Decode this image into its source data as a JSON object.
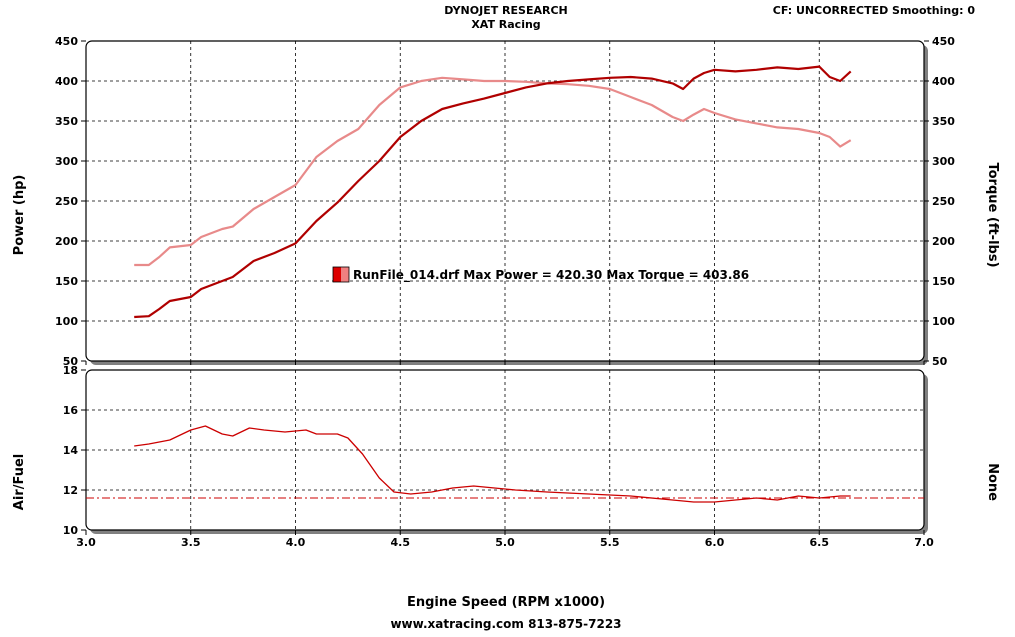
{
  "header": {
    "title": "DYNOJET RESEARCH",
    "subtitle": "XAT Racing",
    "right_info": "CF: UNCORRECTED  Smoothing: 0"
  },
  "footer": {
    "contact": "www.xatracing.com   813-875-7223"
  },
  "legend": {
    "text": "RunFile_014.drf Max Power = 420.30     Max Torque = 403.86",
    "swatch_colors": [
      "#dd0000",
      "#f08080"
    ]
  },
  "colors": {
    "power": "#b00000",
    "torque": "#e88a8a",
    "afr": "#cc0000",
    "reference": "#cc0000"
  },
  "chart_data": [
    {
      "type": "line",
      "name": "power-torque",
      "xlim": [
        3.0,
        7.0
      ],
      "ylim": [
        50,
        450
      ],
      "y2lim": [
        50,
        450
      ],
      "xticks": [
        "3.0",
        "3.5",
        "4.0",
        "4.5",
        "5.0",
        "5.5",
        "6.0",
        "6.5",
        "7.0"
      ],
      "yticks": [
        "50",
        "100",
        "150",
        "200",
        "250",
        "300",
        "350",
        "400",
        "450"
      ],
      "y2ticks": [
        "50",
        "100",
        "150",
        "200",
        "250",
        "300",
        "350",
        "400",
        "450"
      ],
      "ylabel": "Power (hp)",
      "y2label": "Torque (ft-lbs)",
      "grid": true,
      "series": [
        {
          "name": "Power",
          "x": [
            3.23,
            3.3,
            3.35,
            3.4,
            3.5,
            3.55,
            3.65,
            3.7,
            3.8,
            3.9,
            4.0,
            4.1,
            4.2,
            4.3,
            4.4,
            4.5,
            4.6,
            4.7,
            4.8,
            4.9,
            5.0,
            5.1,
            5.2,
            5.3,
            5.4,
            5.5,
            5.6,
            5.7,
            5.8,
            5.85,
            5.9,
            5.95,
            6.0,
            6.1,
            6.2,
            6.3,
            6.4,
            6.5,
            6.55,
            6.6,
            6.65
          ],
          "y": [
            105,
            106,
            115,
            125,
            130,
            140,
            150,
            155,
            175,
            185,
            197,
            225,
            248,
            275,
            300,
            330,
            350,
            365,
            372,
            378,
            385,
            392,
            397,
            400,
            402,
            404,
            405,
            403,
            397,
            390,
            403,
            410,
            414,
            412,
            414,
            417,
            415,
            418,
            405,
            400,
            412
          ]
        },
        {
          "name": "Torque",
          "x": [
            3.23,
            3.3,
            3.35,
            3.4,
            3.5,
            3.55,
            3.65,
            3.7,
            3.8,
            3.9,
            4.0,
            4.1,
            4.2,
            4.3,
            4.4,
            4.5,
            4.6,
            4.7,
            4.8,
            4.9,
            5.0,
            5.1,
            5.2,
            5.3,
            5.4,
            5.5,
            5.6,
            5.7,
            5.8,
            5.85,
            5.9,
            5.95,
            6.0,
            6.1,
            6.2,
            6.3,
            6.4,
            6.5,
            6.55,
            6.6,
            6.65
          ],
          "y": [
            170,
            170,
            180,
            192,
            195,
            205,
            215,
            218,
            240,
            255,
            270,
            305,
            325,
            340,
            370,
            392,
            400,
            404,
            402,
            400,
            400,
            399,
            397,
            396,
            394,
            390,
            380,
            370,
            355,
            350,
            358,
            365,
            360,
            352,
            347,
            342,
            340,
            335,
            330,
            318,
            326
          ]
        }
      ]
    },
    {
      "type": "line",
      "name": "air-fuel",
      "xlim": [
        3.0,
        7.0
      ],
      "ylim": [
        10,
        18
      ],
      "yticks": [
        "10",
        "12",
        "14",
        "16",
        "18"
      ],
      "xticks": [
        "3.0",
        "3.5",
        "4.0",
        "4.5",
        "5.0",
        "5.5",
        "6.0",
        "6.5",
        "7.0"
      ],
      "ylabel": "Air/Fuel",
      "y2label": "None",
      "xlabel": "Engine Speed (RPM x1000)",
      "grid": true,
      "reference_line": 11.6,
      "series": [
        {
          "name": "Air/Fuel",
          "x": [
            3.23,
            3.3,
            3.4,
            3.5,
            3.57,
            3.65,
            3.7,
            3.78,
            3.85,
            3.95,
            4.05,
            4.1,
            4.2,
            4.25,
            4.32,
            4.4,
            4.47,
            4.55,
            4.65,
            4.75,
            4.85,
            4.95,
            5.05,
            5.2,
            5.4,
            5.6,
            5.8,
            5.9,
            6.0,
            6.1,
            6.2,
            6.3,
            6.4,
            6.5,
            6.6,
            6.65
          ],
          "y": [
            14.2,
            14.3,
            14.5,
            15.0,
            15.2,
            14.8,
            14.7,
            15.1,
            15.0,
            14.9,
            15.0,
            14.8,
            14.8,
            14.6,
            13.8,
            12.6,
            11.9,
            11.8,
            11.9,
            12.1,
            12.2,
            12.1,
            12.0,
            11.9,
            11.8,
            11.7,
            11.5,
            11.4,
            11.4,
            11.5,
            11.6,
            11.5,
            11.7,
            11.6,
            11.7,
            11.7
          ]
        }
      ]
    }
  ]
}
